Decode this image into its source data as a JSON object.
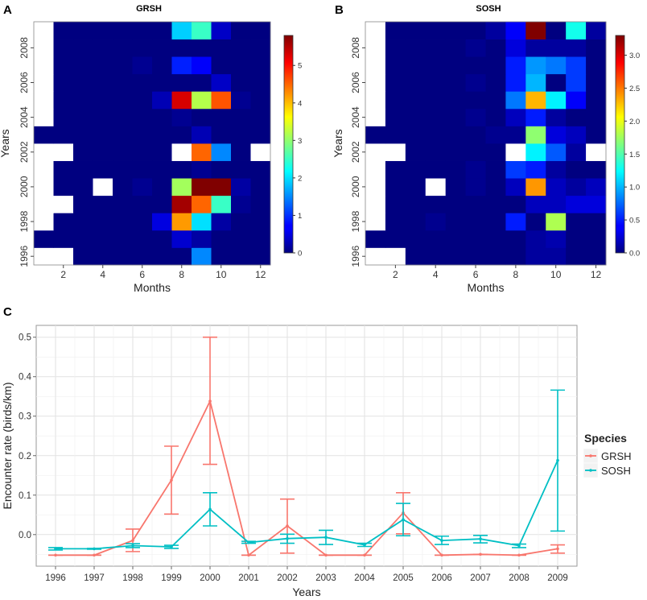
{
  "panels": {
    "a": {
      "letter": "A",
      "title": "GRSH"
    },
    "b": {
      "letter": "B",
      "title": "SOSH"
    },
    "c": {
      "letter": "C"
    }
  },
  "chart_data": [
    {
      "id": "heat-grsh",
      "type": "heatmap",
      "title": "GRSH",
      "xlabel": "Months",
      "ylabel": "Years",
      "x_ticks": [
        2,
        4,
        6,
        8,
        10,
        12
      ],
      "y_ticks": [
        1996,
        1998,
        2000,
        2002,
        2004,
        2006,
        2008
      ],
      "years": [
        1996,
        1997,
        1998,
        1999,
        2000,
        2001,
        2002,
        2003,
        2004,
        2005,
        2006,
        2007,
        2008,
        2009
      ],
      "months": [
        1,
        2,
        3,
        4,
        5,
        6,
        7,
        8,
        9,
        10,
        11,
        12
      ],
      "colorbar": {
        "min": 0,
        "max": 5.8,
        "ticks": [
          0,
          1,
          2,
          3,
          4,
          5
        ]
      },
      "values": [
        [
          null,
          null,
          0,
          0,
          0,
          0,
          0,
          0,
          1.5,
          0,
          0,
          0
        ],
        [
          0,
          0,
          0,
          0,
          0,
          0,
          0,
          0.45,
          0.2,
          0,
          0,
          0
        ],
        [
          null,
          0,
          0,
          0,
          0,
          0,
          0.55,
          4.2,
          2.0,
          0.2,
          0,
          0
        ],
        [
          null,
          null,
          0,
          0,
          0,
          0,
          0,
          5.6,
          4.5,
          2.5,
          0.1,
          0
        ],
        [
          null,
          0,
          0,
          null,
          0,
          0.1,
          0,
          3.1,
          5.8,
          5.8,
          0.2,
          0
        ],
        [
          null,
          0,
          0,
          0,
          0,
          0,
          0,
          0,
          0.1,
          0,
          0,
          0
        ],
        [
          null,
          null,
          0,
          0,
          0,
          0,
          0,
          null,
          4.5,
          1.5,
          0,
          null
        ],
        [
          0,
          0,
          0,
          0,
          0,
          0,
          0,
          0,
          0.3,
          0,
          0,
          0
        ],
        [
          null,
          0,
          0,
          0,
          0,
          0,
          0,
          0.1,
          0,
          0,
          0,
          0
        ],
        [
          null,
          0,
          0,
          0,
          0,
          0,
          0.3,
          5.3,
          3.2,
          4.6,
          0.1,
          0
        ],
        [
          null,
          0,
          0,
          0,
          0,
          0,
          0,
          0,
          0,
          0.4,
          0,
          0
        ],
        [
          null,
          0,
          0,
          0,
          0,
          0.1,
          0,
          0.9,
          0.7,
          0,
          0,
          0
        ],
        [
          null,
          0,
          0,
          0,
          0,
          0,
          0,
          0,
          0,
          0,
          0,
          0
        ],
        [
          null,
          0,
          0,
          0,
          0,
          0,
          0,
          1.9,
          2.5,
          0.4,
          0,
          0
        ]
      ]
    },
    {
      "id": "heat-sosh",
      "type": "heatmap",
      "title": "SOSH",
      "xlabel": "Months",
      "ylabel": "Years",
      "x_ticks": [
        2,
        4,
        6,
        8,
        10,
        12
      ],
      "y_ticks": [
        1996,
        1998,
        2000,
        2002,
        2004,
        2006,
        2008
      ],
      "years": [
        1996,
        1997,
        1998,
        1999,
        2000,
        2001,
        2002,
        2003,
        2004,
        2005,
        2006,
        2007,
        2008,
        2009
      ],
      "months": [
        1,
        2,
        3,
        4,
        5,
        6,
        7,
        8,
        9,
        10,
        11,
        12
      ],
      "colorbar": {
        "min": 0,
        "max": 3.3,
        "ticks": [
          0.0,
          0.5,
          1.0,
          1.5,
          2.0,
          2.5,
          3.0
        ]
      },
      "values": [
        [
          null,
          null,
          0,
          0,
          0,
          0,
          0,
          0,
          0.1,
          0.1,
          0,
          0
        ],
        [
          0,
          0,
          0,
          0,
          0,
          0,
          0,
          0,
          0.1,
          0.15,
          0,
          0
        ],
        [
          null,
          0,
          0,
          0.05,
          0,
          0,
          0,
          0.5,
          0,
          1.8,
          0,
          0
        ],
        [
          null,
          0,
          0,
          0,
          0,
          0,
          0,
          0,
          0.2,
          0.2,
          0.3,
          0.3
        ],
        [
          null,
          0,
          0,
          null,
          0,
          0.05,
          0,
          0.2,
          2.4,
          0.2,
          0.1,
          0.2
        ],
        [
          null,
          0,
          0,
          0,
          0,
          0.05,
          0,
          0.6,
          0.5,
          0.1,
          0,
          0
        ],
        [
          null,
          null,
          0,
          0,
          0,
          0,
          0,
          null,
          1.2,
          0.7,
          0.1,
          null
        ],
        [
          0,
          0,
          0,
          0,
          0,
          0,
          0.05,
          0.05,
          1.7,
          0.3,
          0.2,
          0
        ],
        [
          null,
          0,
          0,
          0,
          0,
          0.05,
          0,
          0.2,
          0.5,
          0.1,
          0,
          0
        ],
        [
          null,
          0,
          0,
          0,
          0,
          0,
          0,
          0.8,
          2.3,
          1.2,
          0.4,
          0
        ],
        [
          null,
          0,
          0,
          0,
          0,
          0.05,
          0,
          0.5,
          1.0,
          0,
          0.6,
          0
        ],
        [
          null,
          0,
          0,
          0,
          0,
          0,
          0,
          0.5,
          0.9,
          0.8,
          0.6,
          0
        ],
        [
          null,
          0,
          0,
          0,
          0,
          0.05,
          0,
          0.3,
          0.1,
          0.1,
          0.1,
          0
        ],
        [
          null,
          0,
          0,
          0,
          0,
          0,
          0.1,
          0.4,
          3.3,
          0,
          1.3,
          0.1
        ]
      ]
    },
    {
      "id": "encounter-lines",
      "type": "line",
      "xlabel": "Years",
      "ylabel": "Encounter rate (birds/km)",
      "categories": [
        "1996",
        "1997",
        "1998",
        "1999",
        "2000",
        "2001",
        "2002",
        "2003",
        "2004",
        "2005",
        "2006",
        "2007",
        "2008",
        "2009"
      ],
      "ylim": [
        -0.08,
        0.53
      ],
      "y_ticks": [
        "0.0",
        "0.1",
        "0.2",
        "0.3",
        "0.4",
        "0.5"
      ],
      "legend": {
        "title": "Species",
        "position": "right"
      },
      "series": [
        {
          "name": "GRSH",
          "color": "#F8766D",
          "values": [
            -0.052,
            -0.052,
            -0.015,
            0.138,
            0.338,
            -0.052,
            0.022,
            -0.052,
            -0.052,
            0.055,
            -0.052,
            -0.05,
            -0.052,
            -0.036
          ],
          "lower": [
            -0.052,
            -0.052,
            -0.043,
            0.052,
            0.178,
            -0.052,
            -0.047,
            -0.052,
            -0.052,
            0.002,
            -0.052,
            -0.05,
            -0.052,
            -0.047
          ],
          "upper": [
            -0.052,
            -0.052,
            0.014,
            0.224,
            0.5,
            -0.052,
            0.09,
            -0.052,
            -0.052,
            0.106,
            -0.052,
            -0.05,
            -0.052,
            -0.026
          ]
        },
        {
          "name": "SOSH",
          "color": "#00BFC4",
          "values": [
            -0.036,
            -0.036,
            -0.028,
            -0.031,
            0.064,
            -0.02,
            -0.01,
            -0.007,
            -0.026,
            0.038,
            -0.015,
            -0.011,
            -0.028,
            0.188
          ],
          "lower": [
            -0.039,
            -0.037,
            -0.033,
            -0.035,
            0.022,
            -0.022,
            -0.022,
            -0.025,
            -0.03,
            -0.003,
            -0.025,
            -0.021,
            -0.033,
            0.009
          ],
          "upper": [
            -0.033,
            -0.035,
            -0.023,
            -0.027,
            0.106,
            -0.017,
            0.001,
            0.011,
            -0.022,
            0.079,
            -0.004,
            -0.002,
            -0.024,
            0.366
          ]
        }
      ]
    }
  ]
}
